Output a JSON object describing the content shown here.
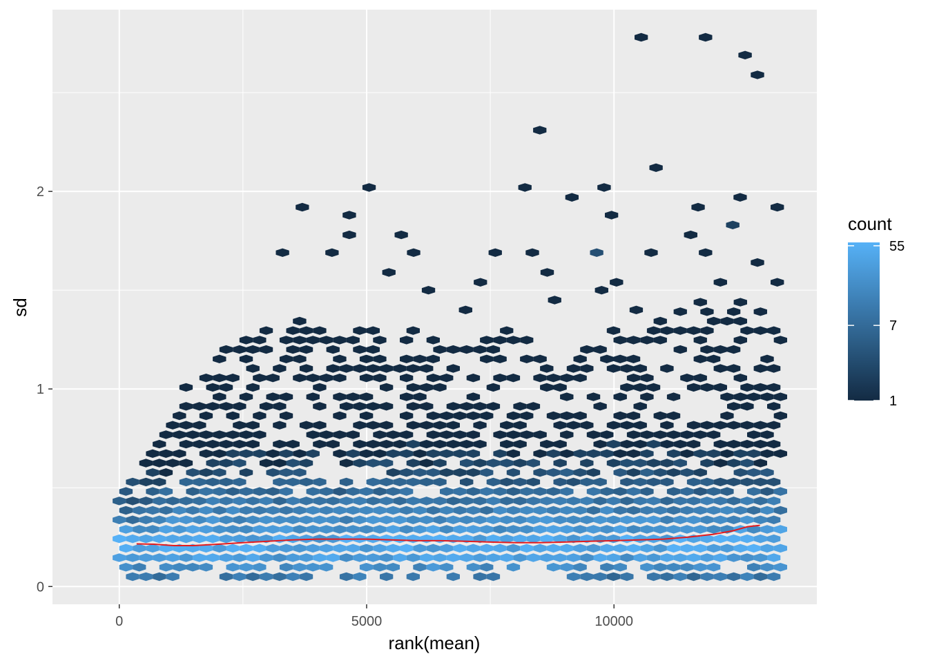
{
  "chart_data": {
    "type": "hexbin",
    "xlabel": "rank(mean)",
    "ylabel": "sd",
    "xlim": [
      -1350,
      14100
    ],
    "ylim": [
      -0.09,
      2.92
    ],
    "x_ticks": [
      0,
      5000,
      10000
    ],
    "x_tick_labels": [
      "0",
      "5000",
      "10000"
    ],
    "y_ticks": [
      0,
      1,
      2
    ],
    "y_tick_labels": [
      "0",
      "1",
      "2"
    ],
    "grid": true,
    "legend": {
      "title": "count",
      "position": "right",
      "scale": "log",
      "range": [
        1,
        60
      ],
      "labels": [
        "55",
        "7",
        "1"
      ],
      "label_values": [
        55,
        7,
        1
      ],
      "color_low": "#132B43",
      "color_high": "#56B1F7"
    },
    "trend_line": {
      "color": "#E41A1C",
      "x": [
        350,
        700,
        1100,
        1500,
        2000,
        2500,
        3000,
        3500,
        4000,
        4500,
        5000,
        5500,
        6000,
        6500,
        7000,
        7500,
        8000,
        8500,
        9000,
        9500,
        10000,
        10500,
        11000,
        11500,
        12000,
        12400,
        12700,
        12950
      ],
      "y": [
        0.216,
        0.214,
        0.207,
        0.207,
        0.214,
        0.222,
        0.229,
        0.236,
        0.24,
        0.24,
        0.24,
        0.236,
        0.232,
        0.232,
        0.229,
        0.225,
        0.222,
        0.222,
        0.225,
        0.229,
        0.232,
        0.236,
        0.24,
        0.25,
        0.264,
        0.282,
        0.303,
        0.31
      ]
    },
    "outlier_hexes": [
      {
        "x": 10550,
        "y": 2.78,
        "count": 1
      },
      {
        "x": 11850,
        "y": 2.78,
        "count": 1
      },
      {
        "x": 12650,
        "y": 2.69,
        "count": 1
      },
      {
        "x": 12900,
        "y": 2.59,
        "count": 1
      },
      {
        "x": 8500,
        "y": 2.31,
        "count": 1
      },
      {
        "x": 10850,
        "y": 2.12,
        "count": 1
      },
      {
        "x": 5050,
        "y": 2.02,
        "count": 1
      },
      {
        "x": 8200,
        "y": 2.02,
        "count": 1
      },
      {
        "x": 9800,
        "y": 2.02,
        "count": 1
      },
      {
        "x": 9150,
        "y": 1.97,
        "count": 1
      },
      {
        "x": 12550,
        "y": 1.97,
        "count": 1
      },
      {
        "x": 3700,
        "y": 1.92,
        "count": 1
      },
      {
        "x": 11700,
        "y": 1.92,
        "count": 1
      },
      {
        "x": 13300,
        "y": 1.92,
        "count": 1
      },
      {
        "x": 4650,
        "y": 1.88,
        "count": 1
      },
      {
        "x": 9950,
        "y": 1.88,
        "count": 1
      },
      {
        "x": 12400,
        "y": 1.83,
        "count": 2
      },
      {
        "x": 4650,
        "y": 1.78,
        "count": 1
      },
      {
        "x": 5700,
        "y": 1.78,
        "count": 1
      },
      {
        "x": 11550,
        "y": 1.78,
        "count": 1
      },
      {
        "x": 3300,
        "y": 1.69,
        "count": 1
      },
      {
        "x": 4300,
        "y": 1.69,
        "count": 1
      },
      {
        "x": 5950,
        "y": 1.69,
        "count": 1
      },
      {
        "x": 7600,
        "y": 1.69,
        "count": 1
      },
      {
        "x": 8350,
        "y": 1.69,
        "count": 1
      },
      {
        "x": 9650,
        "y": 1.69,
        "count": 3
      },
      {
        "x": 10750,
        "y": 1.69,
        "count": 1
      },
      {
        "x": 11850,
        "y": 1.69,
        "count": 1
      },
      {
        "x": 5450,
        "y": 1.59,
        "count": 1
      },
      {
        "x": 8650,
        "y": 1.59,
        "count": 1
      },
      {
        "x": 12900,
        "y": 1.64,
        "count": 1
      },
      {
        "x": 7300,
        "y": 1.54,
        "count": 1
      },
      {
        "x": 10050,
        "y": 1.54,
        "count": 1
      },
      {
        "x": 12150,
        "y": 1.54,
        "count": 1
      },
      {
        "x": 13300,
        "y": 1.54,
        "count": 1
      },
      {
        "x": 6250,
        "y": 1.5,
        "count": 1
      },
      {
        "x": 9750,
        "y": 1.5,
        "count": 1
      },
      {
        "x": 8800,
        "y": 1.45,
        "count": 1
      },
      {
        "x": 7000,
        "y": 1.4,
        "count": 1
      },
      {
        "x": 10450,
        "y": 1.4,
        "count": 1
      }
    ],
    "density_profile": {
      "description": "hexbin counts by column: x = rank(mean) bin centre, y range [ymin, ymax] of occupied bins",
      "x_min": 0,
      "x_max": 13400,
      "upper_envelope_x": [
        0,
        500,
        1000,
        1500,
        2000,
        2500,
        3000,
        3500,
        4000,
        4500,
        5000,
        5500,
        6000,
        6500,
        7000,
        7500,
        8000,
        8500,
        9000,
        9500,
        10000,
        10500,
        11000,
        11500,
        12000,
        12500,
        13000,
        13400
      ],
      "upper_envelope_y": [
        0.5,
        0.6,
        0.85,
        1.05,
        1.15,
        1.25,
        1.3,
        1.35,
        1.3,
        1.3,
        1.3,
        1.3,
        1.3,
        1.2,
        1.25,
        1.25,
        1.3,
        1.2,
        1.15,
        1.2,
        1.3,
        1.3,
        1.35,
        1.4,
        1.45,
        1.45,
        1.4,
        1.3
      ],
      "y_min": 0.05
    }
  }
}
